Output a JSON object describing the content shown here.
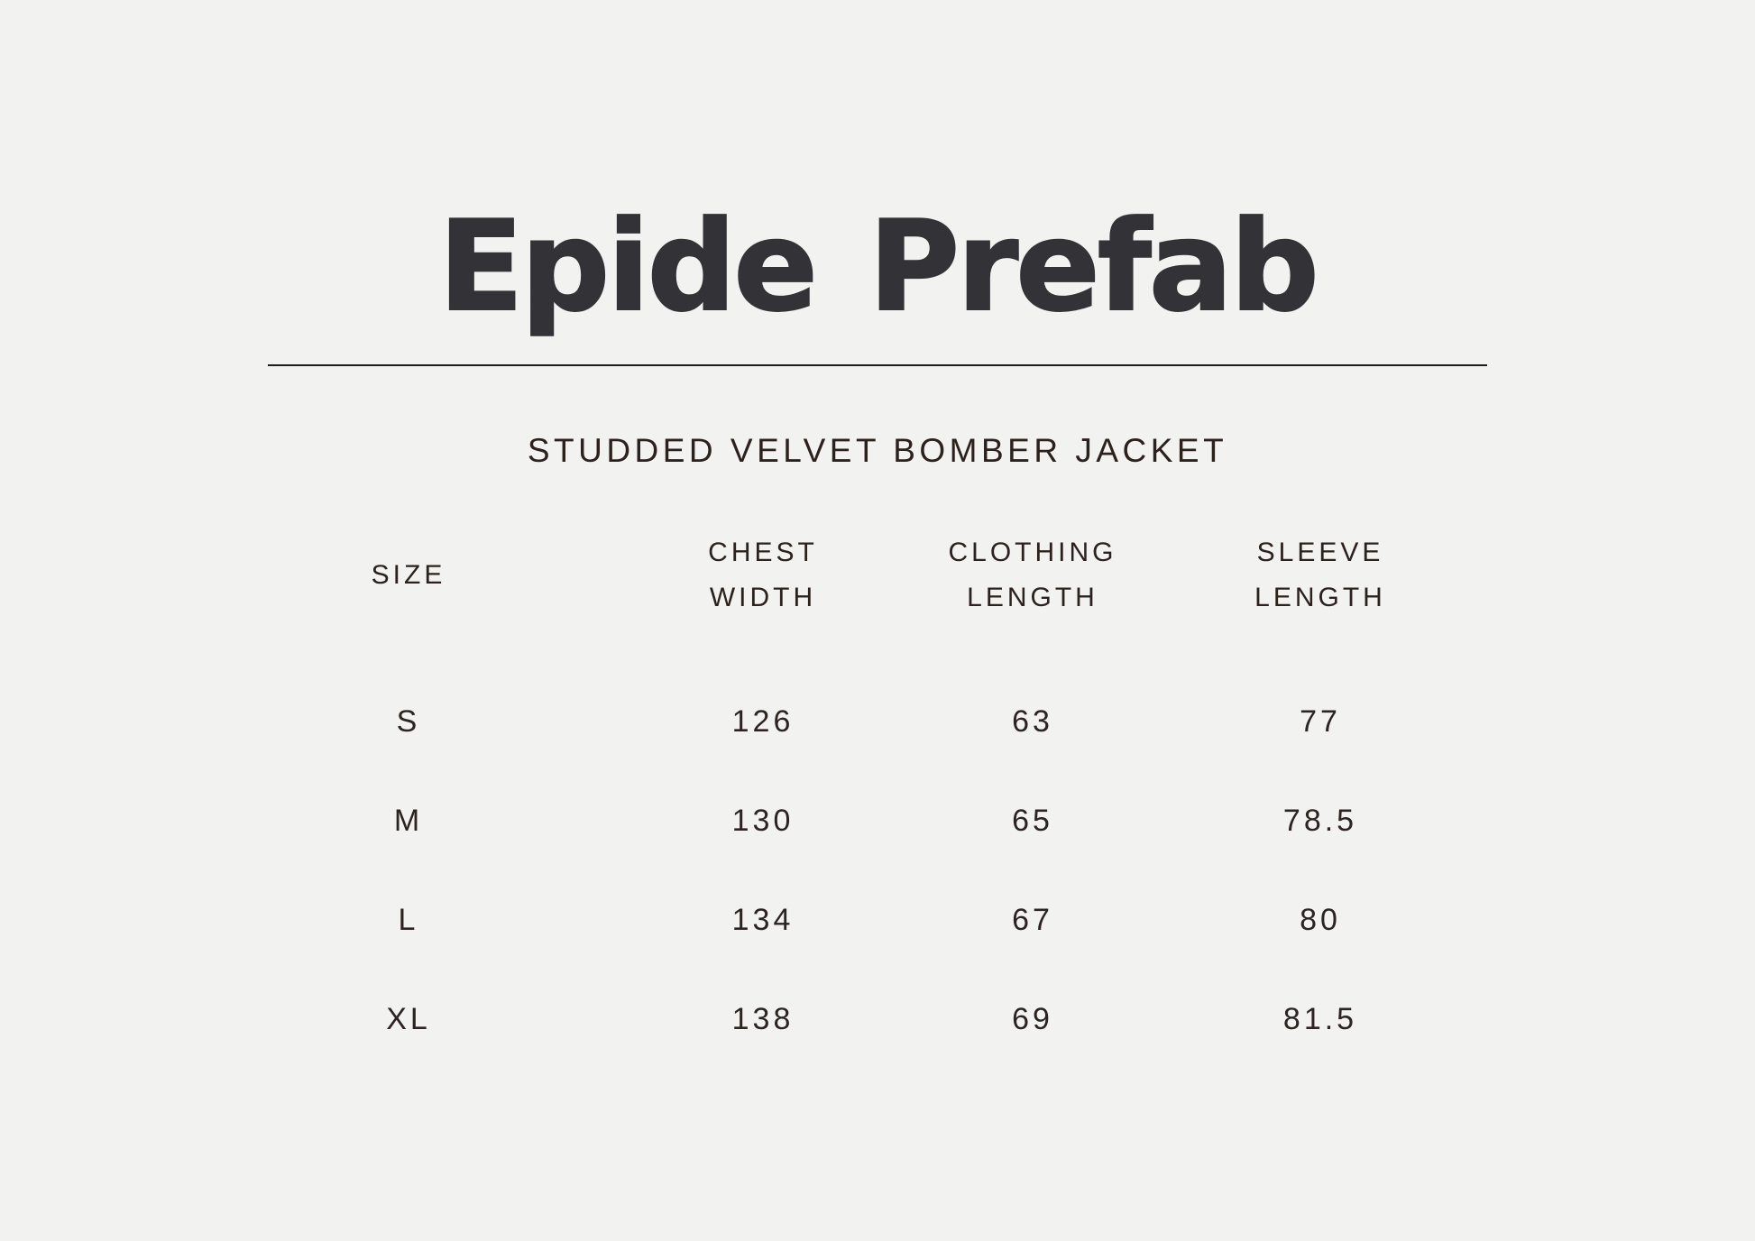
{
  "page": {
    "background_color": "#f2f2f0",
    "text_color": "#2c2420",
    "title_color": "#333237",
    "divider_color": "#1c1c1c"
  },
  "brand": {
    "title": "Epide Prefab"
  },
  "product": {
    "name": "STUDDED VELVET BOMBER JACKET"
  },
  "size_chart": {
    "columns": [
      {
        "label": "SIZE",
        "line1": "SIZE",
        "line2": ""
      },
      {
        "label": "CHEST WIDTH",
        "line1": "CHEST",
        "line2": "WIDTH"
      },
      {
        "label": "CLOTHING LENGTH",
        "line1": "CLOTHING",
        "line2": "LENGTH"
      },
      {
        "label": "SLEEVE LENGTH",
        "line1": "SLEEVE",
        "line2": "LENGTH"
      }
    ],
    "rows": [
      {
        "size": "S",
        "values": [
          "126",
          "63",
          "77"
        ]
      },
      {
        "size": "M",
        "values": [
          "130",
          "65",
          "78.5"
        ]
      },
      {
        "size": "L",
        "values": [
          "134",
          "67",
          "80"
        ]
      },
      {
        "size": "XL",
        "values": [
          "138",
          "69",
          "81.5"
        ]
      }
    ]
  },
  "chart_data": {
    "type": "table",
    "title": "STUDDED VELVET BOMBER JACKET",
    "columns": [
      "SIZE",
      "CHEST WIDTH",
      "CLOTHING LENGTH",
      "SLEEVE LENGTH"
    ],
    "rows": [
      [
        "S",
        126,
        63,
        77
      ],
      [
        "M",
        130,
        65,
        78.5
      ],
      [
        "L",
        134,
        67,
        80
      ],
      [
        "XL",
        138,
        69,
        81.5
      ]
    ]
  }
}
